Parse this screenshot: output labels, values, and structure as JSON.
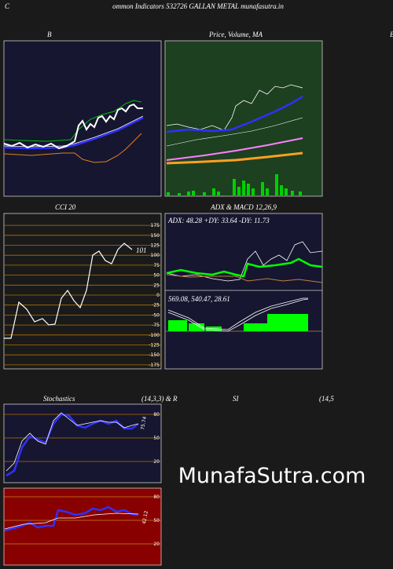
{
  "header": {
    "prefix": "C",
    "title": "ommon Indicators 532726 GALLAN METAL munafasutra.in"
  },
  "edge_label": "B",
  "panels": [
    {
      "title": "B"
    },
    {
      "title": "Price, Volume, MA"
    },
    {
      "title": "CCI 20",
      "ticks": [
        175,
        150,
        125,
        100,
        75,
        50,
        25,
        0,
        -25,
        -50,
        -75,
        -100,
        -125,
        -150,
        -175
      ],
      "value_label": "101"
    },
    {
      "title": "ADX  & MACD 12,26,9",
      "adx_text": "ADX: 48.28  +DY: 33.64  -DY: 11.73",
      "macd_text": "569.08,  540.47,  28.61"
    },
    {
      "title": "Stochastics",
      "params": "(14,3,3) & R",
      "ticks": [
        80,
        50,
        20
      ],
      "value_label": "75.74"
    },
    {
      "title": "SI",
      "params": "(14,5",
      "ticks": [
        80,
        50,
        20
      ],
      "value_label": "42.12"
    }
  ],
  "watermark": "MunafaSutra.com"
}
